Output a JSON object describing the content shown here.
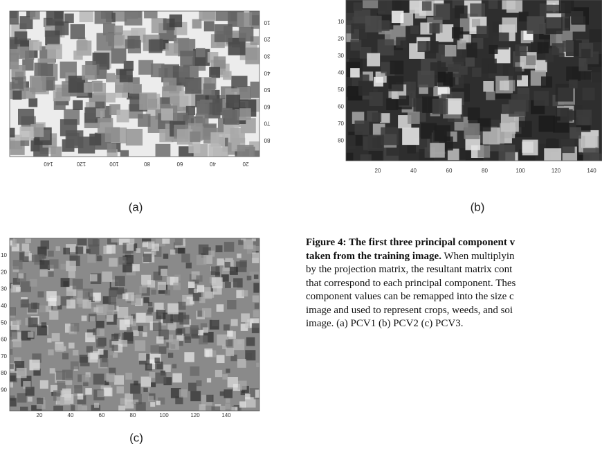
{
  "panels": [
    {
      "label": "(a)",
      "yticks": [
        10,
        20,
        30,
        40,
        50,
        60,
        70,
        80
      ],
      "xticks": [
        140,
        120,
        100,
        80,
        60,
        40,
        20
      ]
    },
    {
      "label": "(b)",
      "yticks": [
        10,
        20,
        30,
        40,
        50,
        60,
        70,
        80
      ],
      "xticks": [
        20,
        40,
        60,
        80,
        100,
        120,
        140
      ]
    },
    {
      "label": "(c)",
      "yticks": [
        10,
        20,
        30,
        40,
        50,
        60,
        70,
        80,
        90
      ],
      "xticks": [
        20,
        40,
        60,
        80,
        100,
        120,
        140
      ]
    }
  ],
  "caption": {
    "bold_lines": [
      "Figure 4: The first three principal component v",
      "taken from the training image."
    ],
    "lines": [
      " When multiplyin",
      "by the projection matrix, the resultant matrix cont",
      "that correspond to each principal component. Thes",
      "component values can be remapped into the size c",
      "image and used to represent crops, weeds, and soi",
      "image. (a) PCV1 (b) PCV2 (c) PCV3."
    ]
  }
}
